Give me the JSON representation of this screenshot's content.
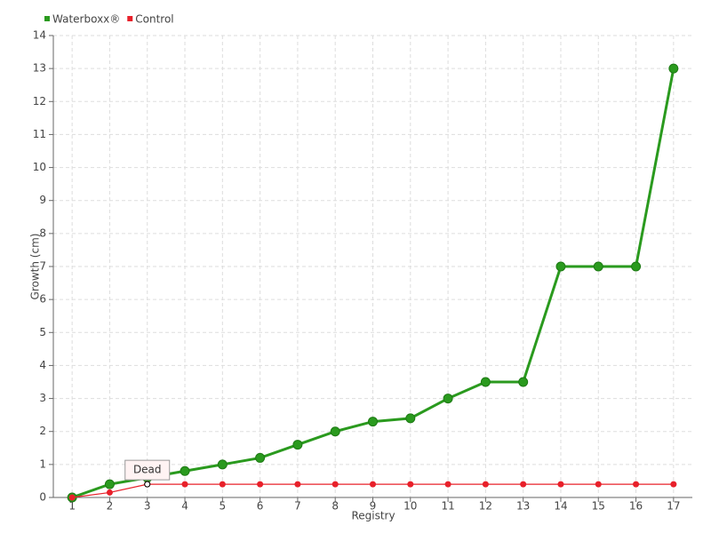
{
  "chart_data": {
    "type": "line",
    "xlabel": "Registry",
    "ylabel": "Growth (cm)",
    "categories": [
      "1",
      "2",
      "3",
      "4",
      "5",
      "6",
      "7",
      "8",
      "9",
      "10",
      "11",
      "12",
      "13",
      "14",
      "15",
      "16",
      "17"
    ],
    "series": [
      {
        "name": "Waterboxx®",
        "color": "#2a9a1e",
        "values": [
          0,
          0.4,
          0.6,
          0.8,
          1.0,
          1.2,
          1.6,
          2.0,
          2.3,
          2.4,
          3.0,
          3.5,
          3.5,
          7,
          7,
          7,
          13
        ]
      },
      {
        "name": "Control",
        "color": "#e8202a",
        "values": [
          0,
          0.15,
          0.4,
          0.4,
          0.4,
          0.4,
          0.4,
          0.4,
          0.4,
          0.4,
          0.4,
          0.4,
          0.4,
          0.4,
          0.4,
          0.4,
          0.4
        ]
      }
    ],
    "annotation": {
      "text": "Dead",
      "series": "Control",
      "category": "3"
    },
    "ylim": [
      0,
      14
    ],
    "yticks": [
      0,
      1,
      2,
      3,
      4,
      5,
      6,
      7,
      8,
      9,
      10,
      11,
      12,
      13,
      14
    ],
    "grid": true,
    "legend": "top-left"
  }
}
